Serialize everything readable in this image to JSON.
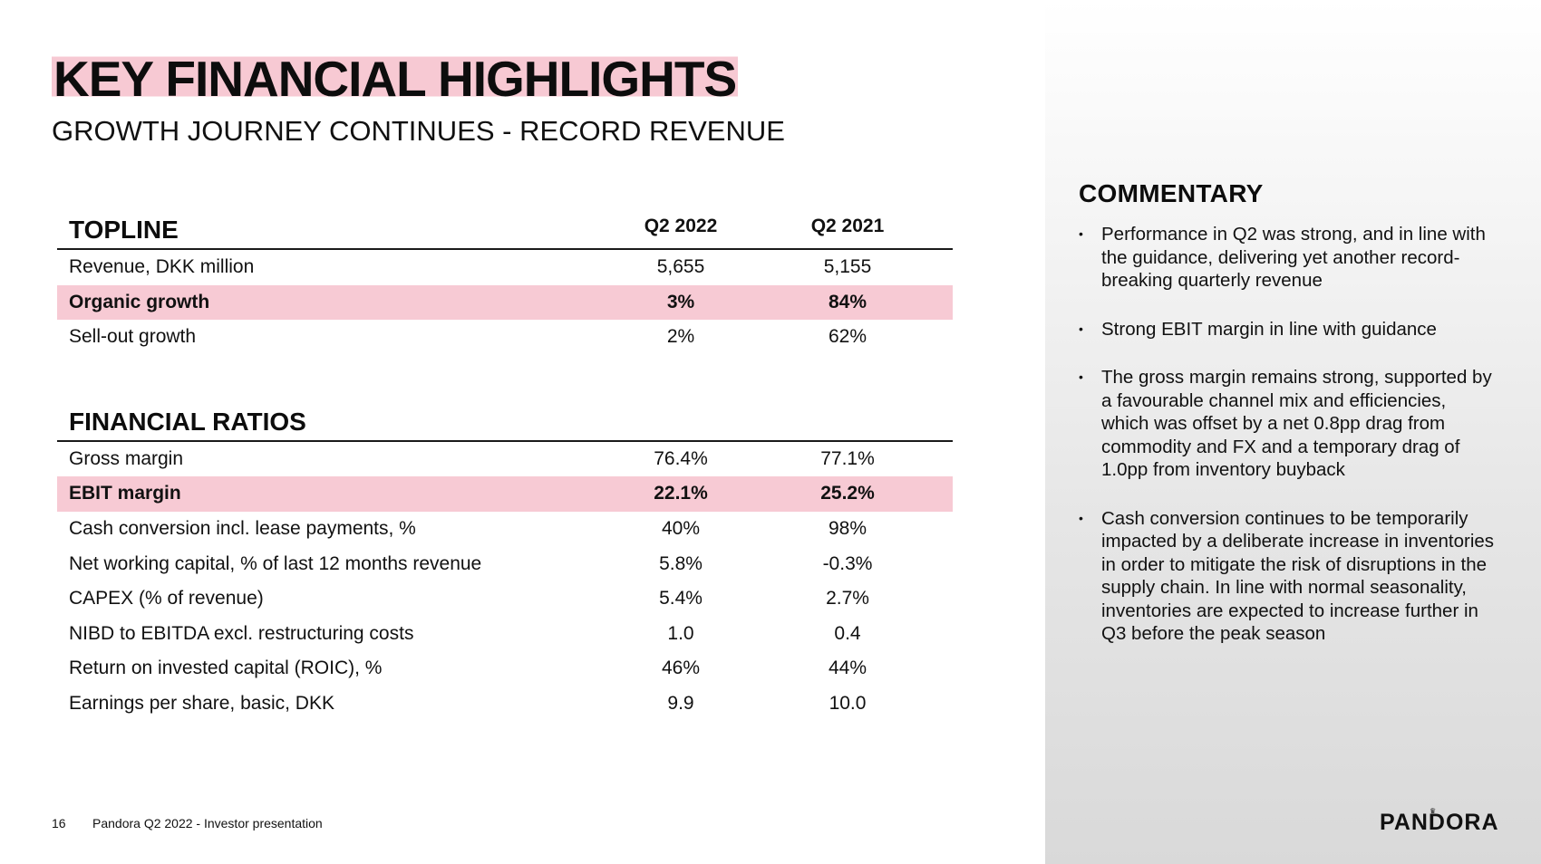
{
  "title": "KEY FINANCIAL HIGHLIGHTS",
  "subtitle": "GROWTH JOURNEY CONTINUES - RECORD REVENUE",
  "columns": [
    "Q2 2022",
    "Q2 2021"
  ],
  "topline": {
    "heading": "TOPLINE",
    "rows": [
      {
        "label": "Revenue, DKK million",
        "q2_2022": "5,655",
        "q2_2021": "5,155",
        "highlight": false
      },
      {
        "label": "Organic growth",
        "q2_2022": "3%",
        "q2_2021": "84%",
        "highlight": true
      },
      {
        "label": "Sell-out growth",
        "q2_2022": "2%",
        "q2_2021": "62%",
        "highlight": false
      }
    ]
  },
  "ratios": {
    "heading": "FINANCIAL RATIOS",
    "rows": [
      {
        "label": "Gross margin",
        "q2_2022": "76.4%",
        "q2_2021": "77.1%",
        "highlight": false
      },
      {
        "label": "EBIT margin",
        "q2_2022": "22.1%",
        "q2_2021": "25.2%",
        "highlight": true
      },
      {
        "label": "Cash conversion incl. lease payments, %",
        "q2_2022": "40%",
        "q2_2021": "98%",
        "highlight": false
      },
      {
        "label": "Net working capital, % of last 12 months revenue",
        "q2_2022": "5.8%",
        "q2_2021": "-0.3%",
        "highlight": false
      },
      {
        "label": "CAPEX (% of revenue)",
        "q2_2022": "5.4%",
        "q2_2021": "2.7%",
        "highlight": false
      },
      {
        "label": "NIBD to EBITDA excl. restructuring costs",
        "q2_2022": "1.0",
        "q2_2021": "0.4",
        "highlight": false
      },
      {
        "label": "Return on invested capital (ROIC), %",
        "q2_2022": "46%",
        "q2_2021": "44%",
        "highlight": false
      },
      {
        "label": "Earnings per share, basic, DKK",
        "q2_2022": "9.9",
        "q2_2021": "10.0",
        "highlight": false
      }
    ]
  },
  "commentary": {
    "title": "COMMENTARY",
    "bullet_glyph": "•",
    "bullets": [
      "Performance in Q2 was strong, and in line with the guidance, delivering yet another record-breaking quarterly revenue",
      "Strong EBIT margin in line with guidance",
      "The gross margin remains strong, supported by a favourable channel mix and efficiencies, which was offset by a net 0.8pp drag from commodity and FX and a temporary drag of 1.0pp from inventory buyback",
      "Cash conversion continues to be temporarily impacted by a deliberate increase in inventories in order to mitigate the risk of disruptions in the supply chain. In line with normal seasonality, inventories are expected to increase further in Q3 before the peak season"
    ]
  },
  "footer": {
    "page_number": "16",
    "text": "Pandora Q2 2022 - Investor presentation"
  },
  "logo": {
    "text": "PANDORA",
    "crown_glyph": "♛"
  },
  "colors": {
    "highlight_pink": "#f7cad4",
    "panel_gray": "#d9d9d9"
  }
}
